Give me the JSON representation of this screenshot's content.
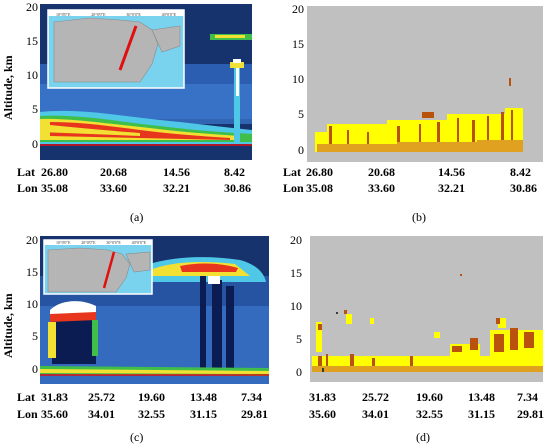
{
  "panels": [
    {
      "id": "a",
      "caption": "(a)",
      "y_ticks": [
        "20",
        "15",
        "10",
        "5",
        "0"
      ],
      "y_label": "Altitude, km",
      "row_labels": [
        "Lat",
        "Lon"
      ],
      "lat": [
        "26.80",
        "20.68",
        "14.56",
        "8.42"
      ],
      "lon": [
        "35.08",
        "33.60",
        "32.21",
        "30.86"
      ],
      "inset_ticks": [
        "10°0'0\"E",
        "20°0'0\"E",
        "30°0'0\"E",
        "40°0'0\"E"
      ]
    },
    {
      "id": "b",
      "caption": "(b)",
      "y_ticks": [
        "20",
        "15",
        "10",
        "5",
        "0"
      ],
      "row_labels": [
        "Lat",
        "Lon"
      ],
      "lat": [
        "26.80",
        "20.68",
        "14.56",
        "8.42"
      ],
      "lon": [
        "35.08",
        "33.60",
        "32.21",
        "30.86"
      ]
    },
    {
      "id": "c",
      "caption": "(c)",
      "y_ticks": [
        "20",
        "15",
        "10",
        "5",
        "0"
      ],
      "y_label": "Altitude, km",
      "row_labels": [
        "Lat",
        "Lon"
      ],
      "lat": [
        "31.83",
        "25.72",
        "19.60",
        "13.48",
        "7.34"
      ],
      "lon": [
        "35.60",
        "34.01",
        "32.55",
        "31.15",
        "29.81"
      ],
      "inset_ticks": [
        "10°0'0\"E",
        "20°0'0\"E",
        "30°0'0\"E",
        "40°0'0\"E"
      ]
    },
    {
      "id": "d",
      "caption": "(d)",
      "y_ticks": [
        "20",
        "15",
        "10",
        "5",
        "0"
      ],
      "lat": [
        "31.83",
        "25.72",
        "19.60",
        "13.48",
        "7.34"
      ],
      "lon": [
        "35.60",
        "34.01",
        "32.55",
        "31.15",
        "29.81"
      ]
    }
  ],
  "colors": {
    "curtain_bg": "#17336e",
    "noise": "#2e63b8",
    "aerosol_low": "#4fc8e8",
    "aerosol_mid": "#3fbf4a",
    "aerosol_high": "#f2e033",
    "aerosol_peak": "#e8361e",
    "cloud": "#ffffff",
    "vfm_bg": "#c0c0c0",
    "vfm_yellow": "#ffff00",
    "vfm_brown": "#b8520c",
    "vfm_orange": "#e0a020",
    "map_sea": "#7ad3ee",
    "map_land": "#b5b5b5",
    "track": "#e01010"
  }
}
